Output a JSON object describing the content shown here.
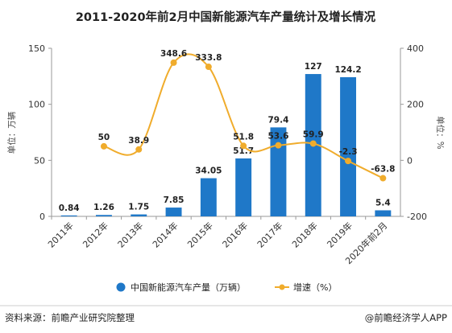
{
  "title": "2011-2020年前2月中国新能源汽车产量统计及增长情况",
  "footer": {
    "source": "资料来源：前瞻产业研究院整理",
    "brand": "@前瞻经济学人APP"
  },
  "chart_data": {
    "type": "bar",
    "title": "2011-2020年前2月中国新能源汽车产量统计及增长情况",
    "categories": [
      "2011年",
      "2012年",
      "2013年",
      "2014年",
      "2015年",
      "2016年",
      "2017年",
      "2018年",
      "2019年",
      "2020年前2月"
    ],
    "left_axis": {
      "label": "单位：万辆",
      "ylim": [
        0,
        150
      ],
      "ticks": [
        "0",
        "50",
        "100",
        "150"
      ]
    },
    "right_axis": {
      "label": "单位：%",
      "ylim": [
        -200,
        400
      ],
      "ticks": [
        "-200",
        "0",
        "200",
        "400"
      ]
    },
    "series": [
      {
        "name": "中国新能源汽车产量（万辆）",
        "type": "bar",
        "axis": "left",
        "color": "#1f78c8",
        "values": [
          0.84,
          1.26,
          1.75,
          7.85,
          34.05,
          51.7,
          79.4,
          127,
          124.2,
          5.4
        ],
        "labels": [
          "0.84",
          "1.26",
          "1.75",
          "7.85",
          "34.05",
          "51.7",
          "79.4",
          "127",
          "124.2",
          "5.4"
        ]
      },
      {
        "name": "增速（%）",
        "type": "line",
        "axis": "right",
        "color": "#f0ac2c",
        "values": [
          null,
          50,
          38.9,
          348.6,
          333.8,
          51.8,
          53.6,
          59.9,
          -2.3,
          -63.8
        ],
        "labels": [
          "",
          "50",
          "38.9",
          "348.6",
          "333.8",
          "51.8",
          "53.6",
          "59.9",
          "-2.3",
          "-63.8"
        ]
      }
    ],
    "grid": false,
    "legend": "bottom"
  }
}
